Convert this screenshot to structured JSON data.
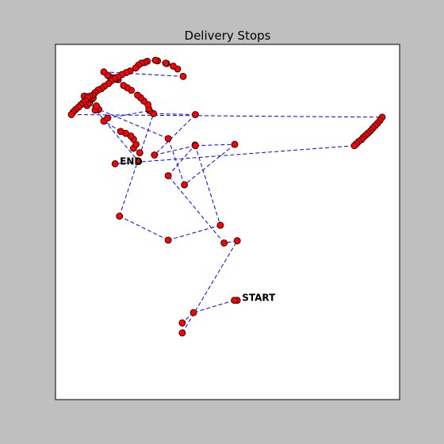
{
  "chart_data": {
    "type": "scatter",
    "title": "Delivery Stops",
    "xlabel": "",
    "ylabel": "",
    "xlim": [
      0,
      100
    ],
    "ylim": [
      0,
      100
    ],
    "grid": false,
    "axis_ticks": false,
    "route_style": "dashed",
    "colors": {
      "figure_background": "#bfbfbf",
      "plot_background": "#ffffff",
      "route": "#0000ff",
      "marker_fill": "#ff0000",
      "marker_edge": "#000000",
      "text": "#000000"
    },
    "labels": [
      {
        "text": "START",
        "stop_index": 0
      },
      {
        "text": "END",
        "stop_index": 99
      }
    ],
    "stops": [
      [
        53.1,
        25.8
      ],
      [
        52.2,
        25.8
      ],
      [
        39.1,
        22.0
      ],
      [
        35.5,
        18.8
      ],
      [
        35.5,
        15.7
      ],
      [
        53.1,
        44.2
      ],
      [
        48.9,
        43.5
      ],
      [
        31.0,
        64.3
      ],
      [
        39.6,
        73.8
      ],
      [
        47.7,
        49.0
      ],
      [
        31.0,
        44.4
      ],
      [
        15.4,
        51.8
      ],
      [
        26.3,
        83.5
      ],
      [
        39.7,
        83.2
      ],
      [
        26.6,
        70.7
      ],
      [
        39.7,
        73.6
      ],
      [
        52.3,
        74.0
      ],
      [
        36.2,
        61.5
      ],
      [
        31.0,
        75.8
      ],
      [
        8.8,
        84.8
      ],
      [
        7.6,
        84.6
      ],
      [
        8.0,
        85.9
      ],
      [
        5.0,
        86.0
      ],
      [
        5.8,
        86.8
      ],
      [
        6.6,
        88.0
      ],
      [
        7.0,
        88.4
      ],
      [
        4.6,
        88.8
      ],
      [
        4.1,
        88.9
      ],
      [
        21.5,
        68.7
      ],
      [
        21.9,
        71.4
      ],
      [
        19.9,
        72.8
      ],
      [
        20.7,
        74.0
      ],
      [
        19.9,
        75.6
      ],
      [
        19.0,
        76.6
      ],
      [
        17.4,
        77.4
      ],
      [
        15.8,
        78.0
      ],
      [
        10.4,
        81.2
      ],
      [
        11.6,
        82.1
      ],
      [
        25.0,
        84.4
      ],
      [
        24.8,
        85.0
      ],
      [
        24.5,
        86.3
      ],
      [
        23.2,
        87.4
      ],
      [
        22.2,
        88.4
      ],
      [
        21.2,
        89.2
      ],
      [
        19.2,
        90.7
      ],
      [
        17.9,
        91.5
      ],
      [
        16.7,
        92.2
      ],
      [
        15.0,
        94.0
      ],
      [
        14.2,
        94.1
      ],
      [
        13.4,
        94.6
      ],
      [
        12.1,
        95.0
      ],
      [
        11.6,
        95.4
      ],
      [
        10.4,
        96.4
      ],
      [
        35.8,
        95.0
      ],
      [
        34.0,
        97.3
      ],
      [
        32.6,
        98.2
      ],
      [
        30.5,
        99.0
      ],
      [
        30.2,
        99.1
      ],
      [
        27.6,
        99.8
      ],
      [
        26.9,
        100.0
      ],
      [
        24.3,
        99.7
      ],
      [
        23.5,
        99.3
      ],
      [
        22.4,
        99.1
      ],
      [
        21.5,
        98.5
      ],
      [
        20.6,
        97.6
      ],
      [
        18.8,
        96.7
      ],
      [
        17.6,
        96.2
      ],
      [
        16.2,
        95.6
      ],
      [
        14.8,
        94.8
      ],
      [
        13.8,
        94.3
      ],
      [
        12.7,
        93.6
      ],
      [
        11.9,
        92.8
      ],
      [
        10.6,
        92.0
      ],
      [
        9.6,
        91.2
      ],
      [
        8.6,
        90.8
      ],
      [
        7.6,
        90.0
      ],
      [
        6.9,
        89.2
      ],
      [
        6.0,
        88.9
      ],
      [
        5.3,
        88.4
      ],
      [
        4.5,
        87.5
      ],
      [
        3.8,
        86.9
      ],
      [
        3.0,
        86.2
      ],
      [
        2.3,
        85.5
      ],
      [
        1.4,
        84.8
      ],
      [
        0.6,
        84.0
      ],
      [
        0.0,
        83.2
      ],
      [
        99.5,
        82.4
      ],
      [
        98.8,
        81.4
      ],
      [
        98.0,
        80.5
      ],
      [
        97.3,
        79.8
      ],
      [
        96.5,
        79.0
      ],
      [
        95.8,
        78.2
      ],
      [
        95.0,
        77.5
      ],
      [
        94.3,
        76.9
      ],
      [
        93.5,
        76.2
      ],
      [
        92.9,
        75.5
      ],
      [
        92.0,
        74.9
      ],
      [
        91.3,
        74.2
      ],
      [
        90.6,
        73.6
      ],
      [
        14.0,
        68.0
      ]
    ]
  }
}
